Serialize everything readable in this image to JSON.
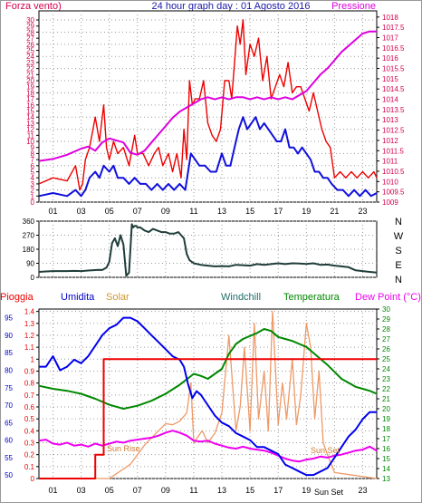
{
  "header": {
    "left_label": "Forza vento)",
    "title": "24 hour graph day : 01 Agosto 2016",
    "right_label": "Pressione"
  },
  "direction_labels": [
    "N",
    "W",
    "S",
    "E",
    "N"
  ],
  "bottom_header": {
    "pioggia": "Pioggia",
    "umidita": "Umidita",
    "solar": "Solar",
    "windchill": "Windchill",
    "temperatura": "Temperatura",
    "dew_point": "Dew Point (°C)"
  },
  "annotations": {
    "sun_rise": "Sun Rise",
    "sun_set": "Sun Set",
    "sun_set_axis": "Sun Set"
  },
  "colors": {
    "wind": "#ee0000",
    "gust": "#1010dd",
    "pressure": "#dd00dd",
    "direction": "#1f3d3a",
    "humidity": "#0000ee",
    "temperature": "#008800",
    "dewpoint": "#ee00ee",
    "solar": "#ee9966",
    "rain": "#ee0000",
    "axis_left": "#d4004d",
    "axis_right_pressure": "#d4004d",
    "axis_right_temp": "#008800",
    "axis_humidity": "#0000cc"
  },
  "chart_data": [
    {
      "type": "line",
      "x_ticks": [
        "01",
        "03",
        "05",
        "07",
        "09",
        "11",
        "13",
        "15",
        "17",
        "19",
        "21",
        "23"
      ],
      "x_range": [
        0,
        24
      ],
      "left_axis": {
        "ticks": [
          0,
          1,
          2,
          3,
          4,
          5,
          6,
          7,
          8,
          9,
          10,
          11,
          12,
          13,
          14,
          15,
          16,
          17,
          18,
          19,
          20,
          21,
          22,
          23,
          24,
          25,
          26,
          27,
          28,
          29,
          30
        ],
        "range": [
          0,
          31.5
        ]
      },
      "right_axis": {
        "ticks": [
          1009,
          1009.5,
          1010,
          1010.5,
          1011,
          1011.5,
          1012,
          1012.5,
          1013,
          1013.5,
          1014,
          1014.5,
          1015,
          1015.5,
          1016,
          1016.5,
          1017,
          1017.5,
          1018
        ],
        "range": [
          1009,
          1018.3
        ]
      },
      "series": [
        {
          "name": "Forza vento)",
          "axis": "left",
          "x": [
            0,
            1,
            2,
            2.6,
            2.9,
            3.1,
            3.3,
            3.6,
            4,
            4.3,
            4.6,
            4.8,
            5,
            5.3,
            5.6,
            6,
            6.4,
            6.8,
            7,
            7.4,
            7.8,
            8.2,
            8.5,
            8.8,
            9.2,
            9.5,
            9.8,
            10.1,
            10.3,
            10.5,
            10.7,
            10.9,
            11.1,
            11.4,
            11.7,
            12,
            12.3,
            12.6,
            12.9,
            13.2,
            13.5,
            13.7,
            13.9,
            14.1,
            14.3,
            14.5,
            14.7,
            15,
            15.3,
            15.6,
            15.9,
            16.2,
            16.5,
            16.8,
            17.1,
            17.4,
            17.7,
            18,
            18.3,
            18.6,
            18.9,
            19.2,
            19.5,
            19.8,
            20.1,
            20.4,
            20.7,
            21,
            21.4,
            21.8,
            22.2,
            22.6,
            23,
            23.4,
            23.8,
            24
          ],
          "y": [
            3,
            4,
            3.5,
            6,
            2,
            3,
            7,
            9,
            14,
            10,
            16,
            9,
            7,
            10,
            8,
            9,
            6,
            11,
            8,
            8,
            6,
            8,
            9,
            6,
            8,
            5,
            8,
            4,
            12,
            7,
            20,
            16,
            17,
            17,
            20,
            13,
            11,
            10,
            12,
            20,
            20,
            17,
            23,
            29,
            26,
            30,
            21,
            26,
            24,
            27,
            20,
            24,
            17,
            19,
            21,
            19,
            23,
            18,
            19,
            19,
            17,
            15,
            18,
            15,
            12,
            10,
            9,
            4,
            5,
            4,
            5,
            4,
            5,
            4,
            5,
            4
          ]
        },
        {
          "name": "",
          "axis": "left",
          "x": [
            0,
            1,
            2,
            2.6,
            3,
            3.3,
            3.6,
            4,
            4.3,
            4.6,
            5,
            5.3,
            5.6,
            6,
            6.4,
            6.8,
            7.2,
            7.6,
            8,
            8.4,
            8.8,
            9.2,
            9.6,
            10,
            10.4,
            10.8,
            11.1,
            11.4,
            11.8,
            12.2,
            12.6,
            13,
            13.3,
            13.6,
            13.9,
            14.2,
            14.5,
            14.8,
            15.1,
            15.4,
            15.7,
            16,
            16.3,
            16.6,
            16.9,
            17.2,
            17.5,
            17.8,
            18.1,
            18.4,
            18.7,
            19,
            19.3,
            19.6,
            19.9,
            20.2,
            20.5,
            20.8,
            21.2,
            21.6,
            22,
            22.4,
            22.8,
            23.2,
            23.6,
            24
          ],
          "y": [
            1,
            1.5,
            1,
            2,
            1,
            2,
            4,
            5,
            4,
            6,
            5,
            6,
            4,
            4,
            3,
            4,
            3,
            3,
            2,
            3,
            2,
            3,
            2,
            3,
            2,
            8,
            7,
            6,
            6,
            5,
            5,
            8,
            6,
            6,
            9,
            12,
            14,
            12,
            13,
            14,
            12,
            13,
            12,
            11,
            10,
            10,
            12,
            9,
            9,
            8,
            9,
            8,
            7,
            5,
            5,
            4,
            4,
            3,
            2,
            2,
            1,
            2,
            1,
            2,
            1,
            1.5
          ]
        },
        {
          "name": "Pressione",
          "axis": "right",
          "x": [
            0,
            1,
            2,
            3,
            3.5,
            4,
            4.5,
            5,
            5.5,
            6,
            6.5,
            7,
            7.5,
            8,
            8.5,
            9,
            9.5,
            10,
            10.5,
            11,
            11.5,
            12,
            12.5,
            13,
            13.5,
            14,
            14.5,
            15,
            15.5,
            16,
            16.5,
            17,
            17.5,
            18,
            18.5,
            19,
            19.5,
            20,
            20.5,
            21,
            21.5,
            22,
            22.5,
            23,
            23.5,
            24
          ],
          "y": [
            1011.0,
            1011.1,
            1011.3,
            1011.6,
            1011.7,
            1011.5,
            1011.9,
            1012.1,
            1012.0,
            1011.9,
            1011.4,
            1011.3,
            1011.5,
            1011.9,
            1012.3,
            1012.7,
            1013.1,
            1013.4,
            1013.6,
            1013.8,
            1014.0,
            1014.1,
            1014.0,
            1014.1,
            1014.0,
            1014.1,
            1014.1,
            1014.0,
            1014.1,
            1014.0,
            1014.1,
            1014.0,
            1014.1,
            1014.0,
            1014.2,
            1014.4,
            1014.8,
            1015.2,
            1015.5,
            1015.9,
            1016.3,
            1016.6,
            1016.9,
            1017.2,
            1017.3,
            1017.3
          ]
        }
      ]
    },
    {
      "type": "line",
      "x_range": [
        0,
        24
      ],
      "y_ticks": [
        0,
        90,
        180,
        270,
        360
      ],
      "y_range": [
        0,
        360
      ],
      "series": [
        {
          "name": "",
          "x": [
            0,
            0.5,
            1,
            1.5,
            2,
            2.5,
            3,
            3.3,
            3.6,
            3.9,
            4.2,
            4.5,
            4.8,
            5,
            5.2,
            5.4,
            5.6,
            5.8,
            6,
            6.2,
            6.4,
            6.6,
            6.7,
            6.8,
            6.9,
            7,
            7.2,
            7.5,
            7.8,
            8.1,
            8.4,
            8.7,
            9,
            9.3,
            9.6,
            9.9,
            10.1,
            10.3,
            10.5,
            10.7,
            11,
            11.5,
            12,
            12.5,
            13,
            13.5,
            14,
            14.5,
            15,
            15.5,
            16,
            16.5,
            17,
            17.5,
            18,
            18.5,
            19,
            19.5,
            20,
            20.5,
            21,
            21.5,
            22,
            22.5,
            23,
            23.5,
            24
          ],
          "y": [
            35,
            38,
            40,
            40,
            40,
            41,
            40,
            42,
            44,
            46,
            48,
            47,
            62,
            100,
            220,
            250,
            200,
            270,
            210,
            10,
            30,
            340,
            320,
            330,
            330,
            320,
            320,
            300,
            290,
            310,
            300,
            290,
            290,
            280,
            280,
            290,
            270,
            250,
            150,
            110,
            90,
            80,
            75,
            70,
            72,
            70,
            80,
            78,
            75,
            85,
            80,
            85,
            90,
            85,
            90,
            88,
            86,
            90,
            80,
            82,
            75,
            70,
            65,
            45,
            40,
            35,
            30
          ]
        }
      ]
    },
    {
      "type": "line",
      "x_range": [
        0,
        24
      ],
      "humidity_axis": {
        "ticks": [
          50,
          55,
          60,
          65,
          70,
          75,
          80,
          85,
          90,
          95
        ],
        "range": [
          49,
          97.5
        ]
      },
      "rain_axis": {
        "ticks": [
          0,
          0.1,
          0.2,
          0.3,
          0.4,
          0.5,
          0.6,
          0.7,
          0.8,
          0.9,
          1,
          1.1,
          1.2,
          1.3,
          1.4
        ],
        "range": [
          0,
          1.42
        ]
      },
      "temp_axis": {
        "ticks": [
          13,
          14,
          15,
          16,
          17,
          18,
          19,
          20,
          21,
          22,
          23,
          24,
          25,
          26,
          27,
          28,
          29,
          30
        ],
        "range": [
          13,
          30
        ]
      },
      "series": [
        {
          "name": "Umidita",
          "axis": "humidity",
          "x": [
            0,
            0.5,
            1,
            1.5,
            2,
            2.5,
            3,
            3.5,
            4,
            4.5,
            5,
            5.5,
            6,
            6.5,
            7,
            7.5,
            8,
            8.5,
            9,
            9.5,
            10,
            10.3,
            10.6,
            10.9,
            11.2,
            11.5,
            12,
            12.5,
            13,
            13.5,
            14,
            14.5,
            15,
            15.5,
            16,
            16.5,
            17,
            17.5,
            18,
            18.5,
            19,
            19.5,
            20,
            20.5,
            21,
            21.5,
            22,
            22.5,
            23,
            23.5,
            24
          ],
          "y": [
            81,
            81,
            84,
            80,
            81,
            83,
            82,
            84,
            87,
            90,
            92,
            93,
            95,
            95,
            94,
            92,
            90,
            88,
            86,
            84,
            83,
            81,
            76,
            72,
            74,
            73,
            70,
            67,
            65,
            64,
            62,
            61,
            60,
            58,
            58,
            57,
            56,
            53,
            52,
            51,
            50,
            50,
            51,
            52,
            55,
            58,
            61,
            63,
            66,
            68,
            68
          ]
        },
        {
          "name": "Solar",
          "axis": "rain_scale",
          "x": [
            0,
            5,
            5.5,
            6,
            6.5,
            7,
            7.5,
            8,
            8.5,
            9,
            9.5,
            10,
            10.5,
            10.8,
            11,
            11.3,
            11.6,
            12,
            12.5,
            13,
            13.5,
            14,
            14.3,
            14.6,
            15,
            15.3,
            15.6,
            16,
            16.3,
            16.6,
            17,
            17.3,
            17.6,
            18,
            18.3,
            18.6,
            19,
            19.3,
            19.6,
            19.9,
            20.2,
            20.5,
            21,
            24
          ],
          "y": [
            0,
            0,
            0.04,
            0.08,
            0.12,
            0.2,
            0.28,
            0.34,
            0.4,
            0.46,
            0.45,
            0.48,
            0.55,
            0.8,
            0.3,
            0.35,
            0.4,
            0.3,
            0.38,
            0.55,
            1.2,
            0.4,
            0.6,
            1.1,
            0.4,
            1.3,
            0.5,
            0.9,
            0.4,
            1.4,
            0.45,
            0.8,
            0.5,
            1.0,
            0.45,
            0.7,
            1.3,
            1.1,
            0.5,
            0.9,
            0.3,
            0.2,
            0.05,
            0
          ]
        },
        {
          "name": "Temperatura",
          "axis": "temp",
          "x": [
            0,
            1,
            2,
            3,
            4,
            5,
            6,
            7,
            8,
            9,
            10,
            11,
            11.5,
            12,
            12.5,
            13,
            13.5,
            14,
            14.5,
            15,
            15.5,
            16,
            16.5,
            17,
            17.5,
            18,
            18.5,
            19,
            19.5,
            20,
            20.5,
            21,
            21.5,
            22,
            22.5,
            23,
            23.5,
            24
          ],
          "y": [
            22.3,
            22.0,
            21.8,
            21.5,
            21.0,
            20.4,
            20.0,
            20.3,
            20.8,
            21.5,
            22.4,
            23.5,
            23.3,
            23.0,
            23.5,
            24.0,
            25.5,
            26.5,
            27.0,
            27.3,
            27.6,
            28.0,
            27.8,
            27.2,
            27.0,
            26.8,
            26.5,
            26.2,
            25.6,
            25.0,
            24.4,
            23.7,
            23.0,
            22.6,
            22.2,
            22.0,
            21.8,
            21.5
          ]
        },
        {
          "name": "Dew Point (°C)",
          "axis": "temp",
          "x": [
            0,
            0.5,
            1,
            1.5,
            2,
            2.5,
            3,
            3.5,
            4,
            4.5,
            5,
            5.5,
            6,
            6.5,
            7,
            7.5,
            8,
            8.5,
            9,
            9.5,
            10,
            10.5,
            11,
            11.5,
            12,
            12.5,
            13,
            13.5,
            14,
            14.5,
            15,
            15.5,
            16,
            16.5,
            17,
            17.5,
            18,
            18.5,
            19,
            19.5,
            20,
            20.5,
            21,
            21.5,
            22,
            22.5,
            23,
            23.5,
            24
          ],
          "y": [
            16.8,
            16.9,
            16.5,
            16.4,
            16.6,
            16.3,
            16.4,
            16.2,
            16.5,
            16.3,
            16.5,
            16.7,
            16.6,
            16.8,
            16.9,
            17.0,
            17.1,
            17.3,
            17.6,
            17.8,
            17.6,
            17.3,
            16.8,
            16.7,
            16.8,
            16.5,
            16.3,
            16.1,
            16.0,
            16.2,
            16.0,
            15.9,
            15.8,
            15.6,
            15.3,
            15.0,
            14.8,
            14.7,
            14.9,
            15.0,
            15.2,
            15.1,
            15.3,
            15.4,
            15.6,
            15.8,
            15.9,
            16.2,
            15.8
          ]
        },
        {
          "name": "Pioggia",
          "axis": "rain",
          "x": [
            0,
            4,
            4,
            4.6,
            4.6,
            5.2,
            5.2,
            24
          ],
          "y": [
            0,
            0,
            0.2,
            0.2,
            1.0,
            1.0,
            1.0,
            1.0
          ]
        }
      ]
    }
  ]
}
